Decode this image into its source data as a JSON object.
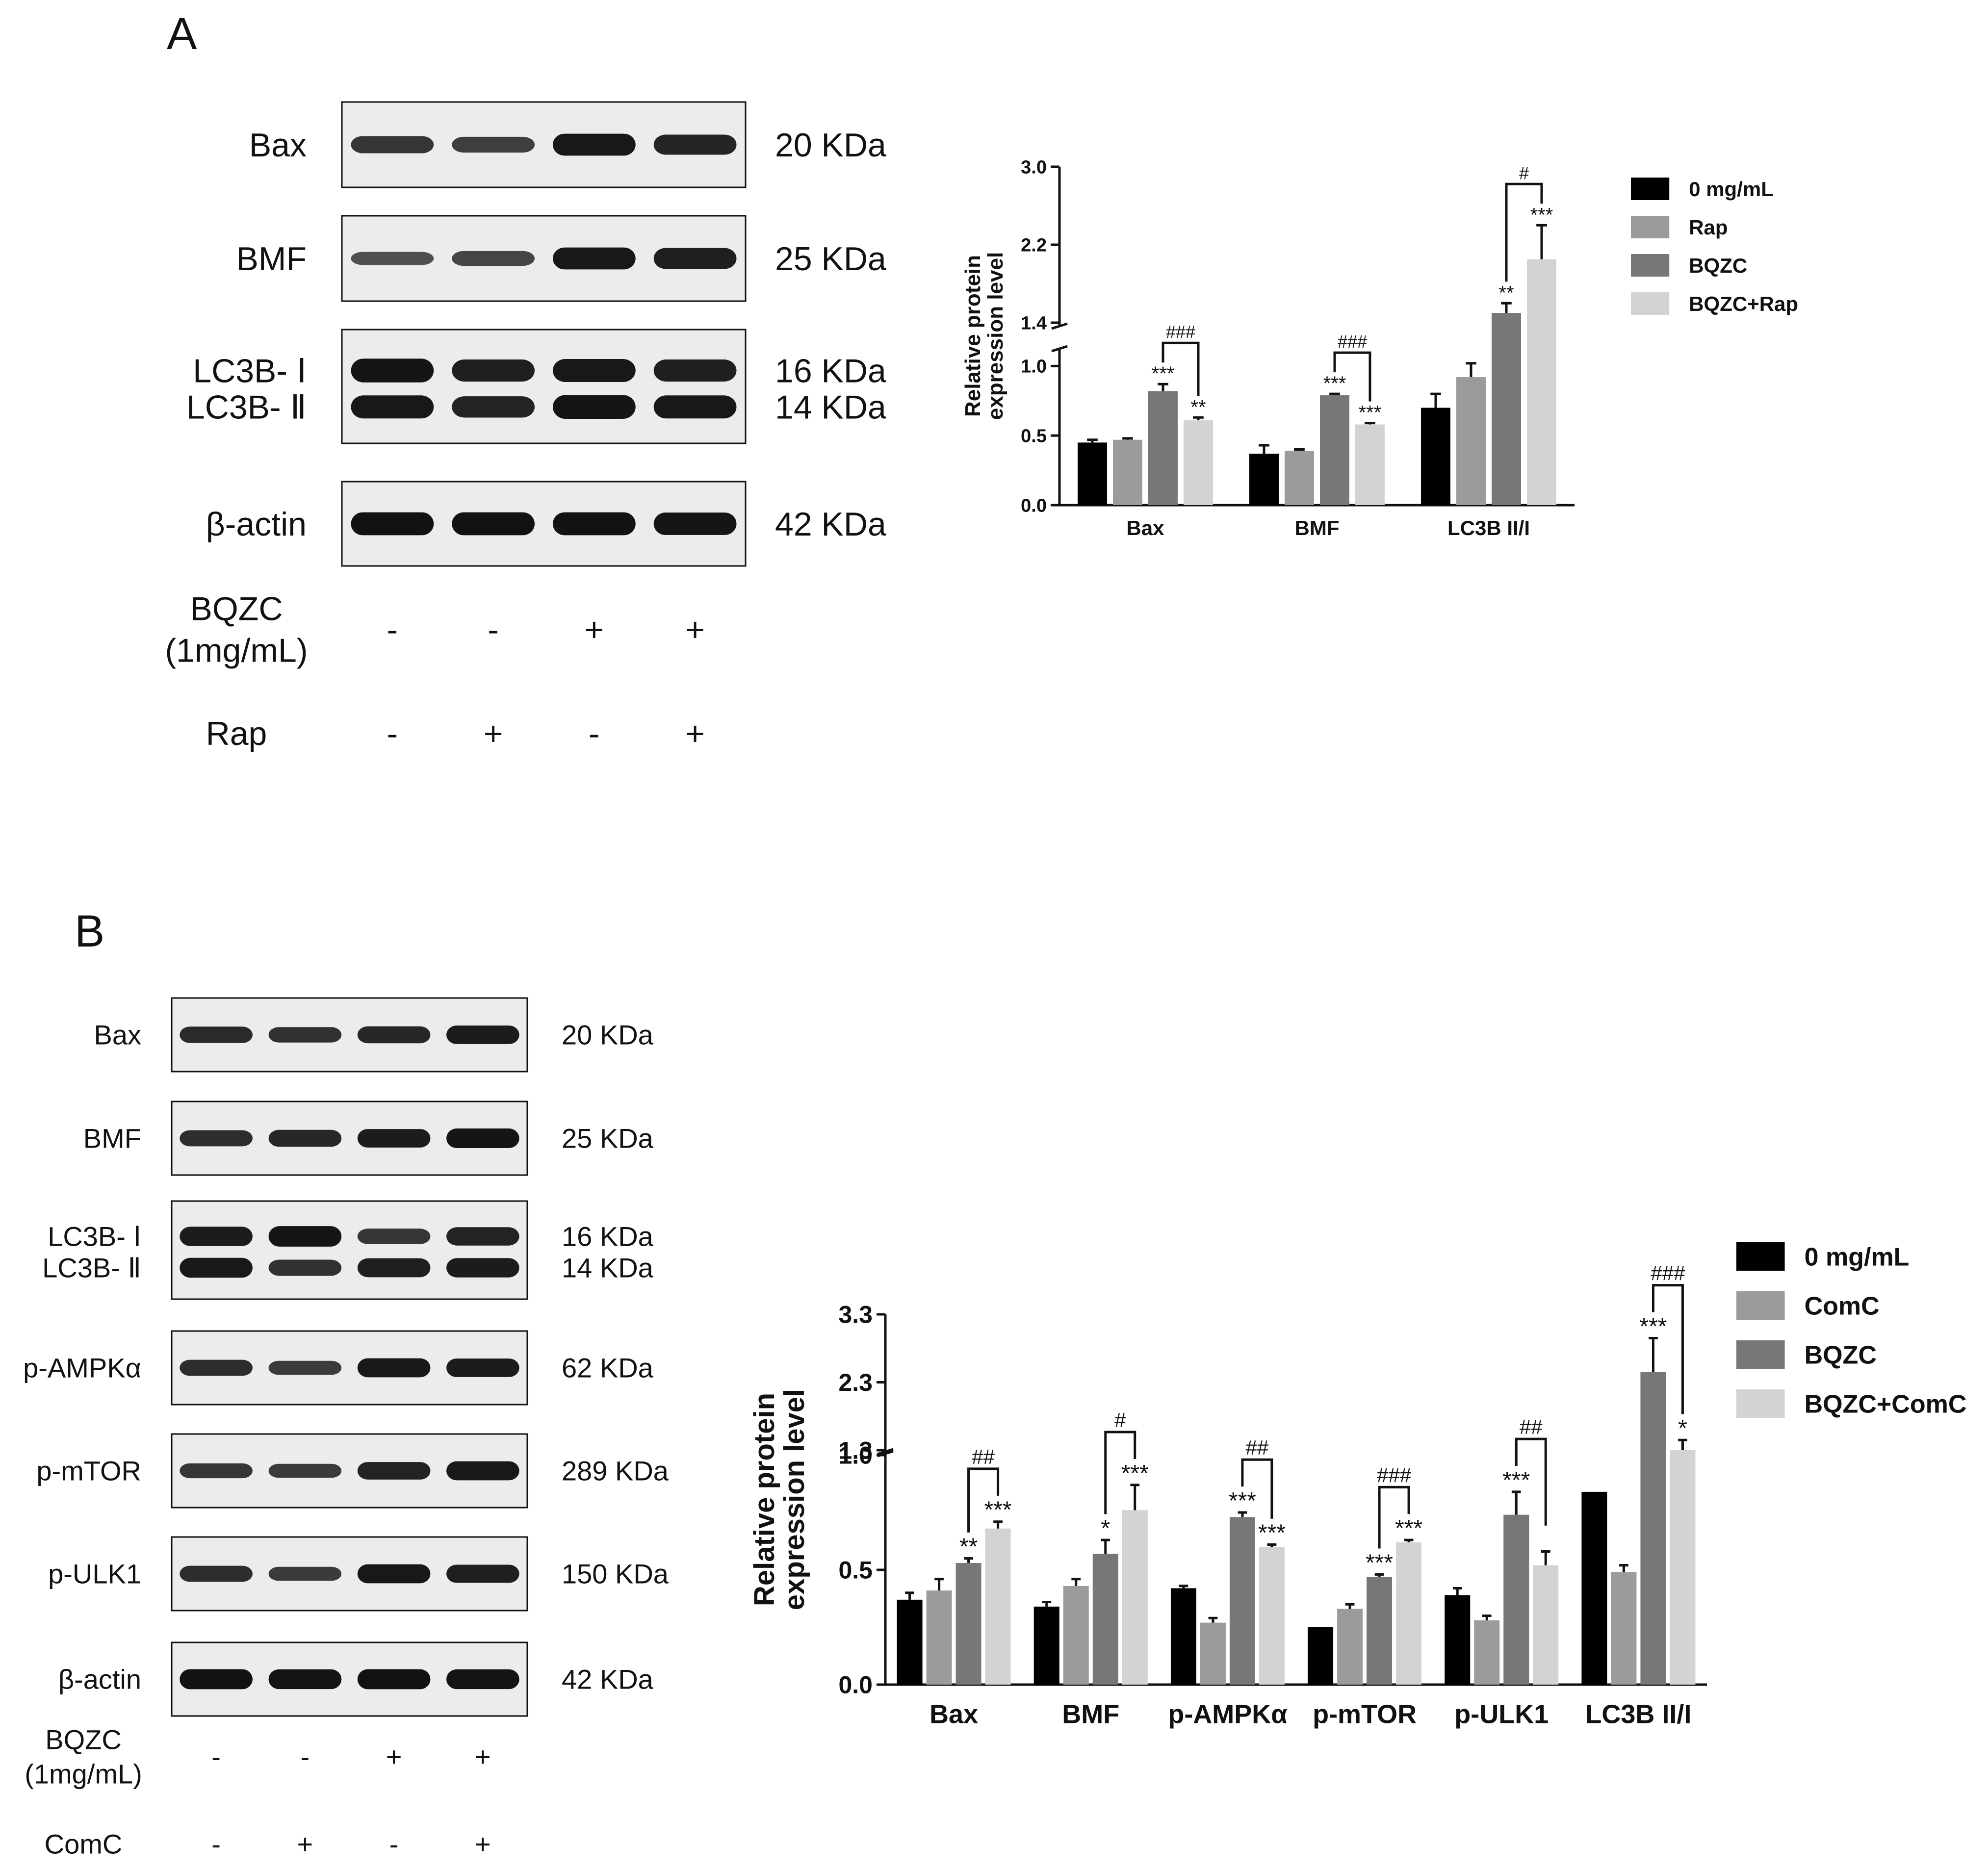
{
  "panels": [
    {
      "letter": "A",
      "blot": {
        "rows": [
          {
            "name": "Bax",
            "mw": "20 KDa",
            "bands": [
              [
                0.72,
                0.66,
                0.92,
                0.84
              ]
            ]
          },
          {
            "name": "BMF",
            "mw": "25 KDa",
            "bands": [
              [
                0.55,
                0.62,
                0.92,
                0.88
              ]
            ]
          },
          {
            "names": [
              "LC3B- Ⅰ",
              "LC3B- Ⅱ"
            ],
            "mws": [
              "16 KDa",
              "14 KDa"
            ],
            "bands": [
              [
                0.95,
                0.88,
                0.92,
                0.88
              ],
              [
                0.92,
                0.85,
                0.95,
                0.92
              ]
            ]
          },
          {
            "name": "β-actin",
            "mw": "42 KDa",
            "bands": [
              [
                0.97,
                0.97,
                0.97,
                0.95
              ]
            ]
          }
        ],
        "treatments": [
          {
            "label_lines": [
              "BQZC",
              "(1mg/mL)"
            ],
            "signs": [
              "-",
              "-",
              "+",
              "+"
            ]
          },
          {
            "label_lines": [
              "Rap"
            ],
            "signs": [
              "-",
              "+",
              "-",
              "+"
            ]
          }
        ]
      }
    },
    {
      "letter": "B",
      "blot": {
        "rows": [
          {
            "name": "Bax",
            "mw": "20 KDa",
            "bands": [
              [
                0.8,
                0.75,
                0.82,
                0.9
              ]
            ]
          },
          {
            "name": "BMF",
            "mw": "25 KDa",
            "bands": [
              [
                0.78,
                0.82,
                0.9,
                0.95
              ]
            ]
          },
          {
            "names": [
              "LC3B- Ⅰ",
              "LC3B- Ⅱ"
            ],
            "mws": [
              "16 KDa",
              "14 KDa"
            ],
            "bands": [
              [
                0.9,
                0.95,
                0.72,
                0.85
              ],
              [
                0.92,
                0.75,
                0.88,
                0.9
              ]
            ]
          },
          {
            "name": "p-AMPKα",
            "mw": "62 KDa",
            "bands": [
              [
                0.78,
                0.68,
                0.92,
                0.9
              ]
            ]
          },
          {
            "name": "p-mTOR",
            "mw": "289 KDa",
            "bands": [
              [
                0.72,
                0.68,
                0.85,
                0.92
              ]
            ]
          },
          {
            "name": "p-ULK1",
            "mw": "150 KDa",
            "bands": [
              [
                0.78,
                0.68,
                0.92,
                0.88
              ]
            ]
          },
          {
            "name": "β-actin",
            "mw": "42 KDa",
            "bands": [
              [
                0.97,
                0.96,
                0.97,
                0.96
              ]
            ]
          }
        ],
        "treatments": [
          {
            "label_lines": [
              "BQZC",
              "(1mg/mL)"
            ],
            "signs": [
              "-",
              "-",
              "+",
              "+"
            ]
          },
          {
            "label_lines": [
              "ComC"
            ],
            "signs": [
              "-",
              "+",
              "-",
              "+"
            ]
          }
        ]
      }
    }
  ],
  "colors": {
    "s1": "#000000",
    "s2": "#9b9b9b",
    "s3": "#777777",
    "s4": "#d3d3d3"
  },
  "chart_data": [
    {
      "type": "bar",
      "ylabel_lines": [
        "Relative protein",
        "expression level"
      ],
      "categories": [
        "Bax",
        "BMF",
        "LC3B II/I"
      ],
      "series": [
        {
          "name": "0 mg/mL",
          "values": [
            0.45,
            0.37,
            0.7
          ],
          "errors": [
            0.02,
            0.06,
            0.1
          ],
          "stars": [
            "",
            "",
            ""
          ]
        },
        {
          "name": "Rap",
          "values": [
            0.47,
            0.39,
            0.92
          ],
          "errors": [
            0.01,
            0.01,
            0.1
          ],
          "stars": [
            "",
            "",
            ""
          ]
        },
        {
          "name": "BQZC",
          "values": [
            0.82,
            0.79,
            1.5
          ],
          "errors": [
            0.05,
            0.01,
            0.1
          ],
          "stars": [
            "***",
            "***",
            "**"
          ]
        },
        {
          "name": "BQZC+Rap",
          "values": [
            0.61,
            0.58,
            2.05
          ],
          "errors": [
            0.02,
            0.01,
            0.35
          ],
          "stars": [
            "**",
            "***",
            "***"
          ]
        }
      ],
      "brackets": [
        {
          "category": 0,
          "from": 2,
          "to": 3,
          "label": "###"
        },
        {
          "category": 1,
          "from": 2,
          "to": 3,
          "label": "###"
        },
        {
          "category": 2,
          "from": 2,
          "to": 3,
          "label": "#"
        }
      ],
      "axis_break": {
        "lower_max": 1.1,
        "upper_min": 1.4
      },
      "ylim": [
        0,
        3.0
      ],
      "yticks_lower": [
        "0.0",
        "0.5",
        "1.0"
      ],
      "yticks_upper": [
        "1.4",
        "2.2",
        "3.0"
      ],
      "legend_position": "right"
    },
    {
      "type": "bar",
      "ylabel_lines": [
        "Relative protein",
        "expression level"
      ],
      "categories": [
        "Bax",
        "BMF",
        "p-AMPKα",
        "p-mTOR",
        "p-ULK1",
        "LC3B II/I"
      ],
      "series": [
        {
          "name": "0 mg/mL",
          "values": [
            0.37,
            0.34,
            0.42,
            0.25,
            0.39,
            0.84
          ],
          "errors": [
            0.03,
            0.02,
            0.01,
            0.0,
            0.03,
            0.0
          ],
          "stars": [
            "",
            "",
            "",
            "",
            "",
            ""
          ]
        },
        {
          "name": "ComC",
          "values": [
            0.41,
            0.43,
            0.27,
            0.33,
            0.28,
            0.49
          ],
          "errors": [
            0.05,
            0.03,
            0.02,
            0.02,
            0.02,
            0.03
          ],
          "stars": [
            "",
            "",
            "",
            "",
            "",
            ""
          ]
        },
        {
          "name": "BQZC",
          "values": [
            0.53,
            0.57,
            0.73,
            0.47,
            0.74,
            2.45
          ],
          "errors": [
            0.02,
            0.06,
            0.02,
            0.01,
            0.1,
            0.5
          ],
          "stars": [
            "**",
            "*",
            "***",
            "***",
            "***",
            "***"
          ]
        },
        {
          "name": "BQZC+ComC",
          "values": [
            0.68,
            0.76,
            0.6,
            0.62,
            0.52,
            1.3
          ],
          "errors": [
            0.03,
            0.11,
            0.01,
            0.01,
            0.06,
            0.15
          ],
          "stars": [
            "***",
            "***",
            "***",
            "***",
            "",
            "*"
          ]
        }
      ],
      "brackets": [
        {
          "category": 0,
          "from": 2,
          "to": 3,
          "label": "##"
        },
        {
          "category": 1,
          "from": 2,
          "to": 3,
          "label": "#"
        },
        {
          "category": 2,
          "from": 2,
          "to": 3,
          "label": "##"
        },
        {
          "category": 3,
          "from": 2,
          "to": 3,
          "label": "###"
        },
        {
          "category": 4,
          "from": 2,
          "to": 3,
          "label": "##"
        },
        {
          "category": 5,
          "from": 2,
          "to": 3,
          "label": "###"
        }
      ],
      "axis_break": {
        "lower_max": 1.0,
        "upper_min": 1.3
      },
      "ylim": [
        0,
        3.3
      ],
      "yticks_lower": [
        "0.0",
        "0.5",
        "1.0"
      ],
      "yticks_upper": [
        "1.3",
        "2.3",
        "3.3"
      ],
      "legend_position": "right"
    }
  ]
}
